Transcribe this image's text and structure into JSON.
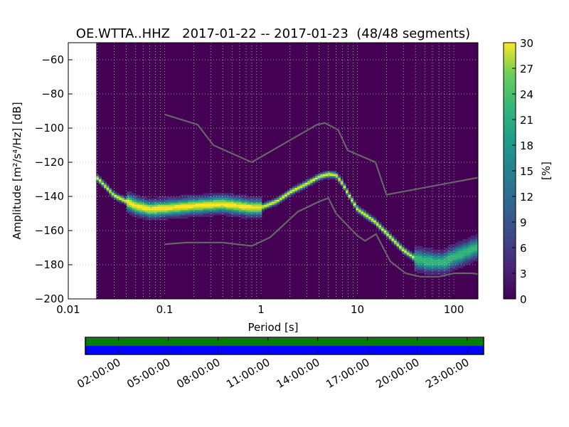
{
  "chart_data": {
    "type": "heatmap",
    "title": "OE.WTTA..HHZ   2017-01-22 -- 2017-01-23  (48/48 segments)",
    "xlabel": "Period [s]",
    "ylabel": "Amplitude [m²/s⁴/Hz] [dB]",
    "xscale": "log",
    "xlim": [
      0.01,
      178
    ],
    "ylim": [
      -200,
      -50
    ],
    "xticks": [
      {
        "v": 0.01,
        "label": "0.01"
      },
      {
        "v": 0.1,
        "label": "0.1"
      },
      {
        "v": 1,
        "label": "1"
      },
      {
        "v": 10,
        "label": "10"
      },
      {
        "v": 100,
        "label": "100"
      }
    ],
    "yticks": [
      {
        "v": -60,
        "label": "−60"
      },
      {
        "v": -80,
        "label": "−80"
      },
      {
        "v": -100,
        "label": "−100"
      },
      {
        "v": -120,
        "label": "−120"
      },
      {
        "v": -140,
        "label": "−140"
      },
      {
        "v": -160,
        "label": "−160"
      },
      {
        "v": -180,
        "label": "−180"
      },
      {
        "v": -200,
        "label": "−200"
      }
    ],
    "data_min_period": 0.0195,
    "pdf_mode": [
      [
        0.0195,
        -129
      ],
      [
        0.03,
        -140
      ],
      [
        0.05,
        -146
      ],
      [
        0.07,
        -148
      ],
      [
        0.1,
        -147.5
      ],
      [
        0.2,
        -146
      ],
      [
        0.4,
        -145
      ],
      [
        0.8,
        -147
      ],
      [
        1,
        -147
      ],
      [
        1.5,
        -143
      ],
      [
        2,
        -138
      ],
      [
        3,
        -133
      ],
      [
        4,
        -129
      ],
      [
        5,
        -127.5
      ],
      [
        6,
        -128
      ],
      [
        7,
        -133
      ],
      [
        8,
        -139
      ],
      [
        10,
        -148
      ],
      [
        15,
        -155
      ],
      [
        20,
        -162
      ],
      [
        30,
        -172
      ],
      [
        40,
        -177
      ],
      [
        60,
        -179
      ],
      [
        80,
        -179
      ],
      [
        100,
        -176
      ],
      [
        150,
        -172
      ],
      [
        178,
        -170
      ]
    ],
    "nhnm": [
      [
        0.1,
        -92
      ],
      [
        0.22,
        -98
      ],
      [
        0.32,
        -110
      ],
      [
        0.8,
        -120
      ],
      [
        3.8,
        -98
      ],
      [
        4.6,
        -97
      ],
      [
        6.3,
        -101
      ],
      [
        7.9,
        -113
      ],
      [
        15.4,
        -120
      ],
      [
        20,
        -139
      ],
      [
        178,
        -129
      ]
    ],
    "nlnm": [
      [
        0.1,
        -168
      ],
      [
        0.17,
        -167
      ],
      [
        0.4,
        -167
      ],
      [
        0.8,
        -169
      ],
      [
        1.24,
        -164
      ],
      [
        2.4,
        -149
      ],
      [
        4,
        -143
      ],
      [
        5,
        -141
      ],
      [
        6,
        -150
      ],
      [
        10,
        -163
      ],
      [
        12,
        -166
      ],
      [
        15.6,
        -162
      ],
      [
        21.9,
        -178
      ],
      [
        31.6,
        -185
      ],
      [
        45,
        -187
      ],
      [
        70,
        -187
      ],
      [
        101,
        -185
      ],
      [
        154,
        -185
      ],
      [
        178,
        -185.5
      ]
    ],
    "colorbar": {
      "label": "[%]",
      "min": 0,
      "max": 30,
      "ticks": [
        "0",
        "3",
        "6",
        "9",
        "12",
        "15",
        "18",
        "21",
        "24",
        "27",
        "30"
      ]
    },
    "colors": {
      "background": "#440154",
      "noise_model": "#666666",
      "data_available": "#008000",
      "gaps": "#0000ff"
    }
  },
  "timeline": {
    "range_hours": [
      0,
      24
    ],
    "ticks": [
      {
        "h": 2,
        "label": "02:00:00"
      },
      {
        "h": 5,
        "label": "05:00:00"
      },
      {
        "h": 8,
        "label": "08:00:00"
      },
      {
        "h": 11,
        "label": "11:00:00"
      },
      {
        "h": 14,
        "label": "14:00:00"
      },
      {
        "h": 17,
        "label": "17:00:00"
      },
      {
        "h": 20,
        "label": "20:00:00"
      },
      {
        "h": 23,
        "label": "23:00:00"
      }
    ]
  }
}
